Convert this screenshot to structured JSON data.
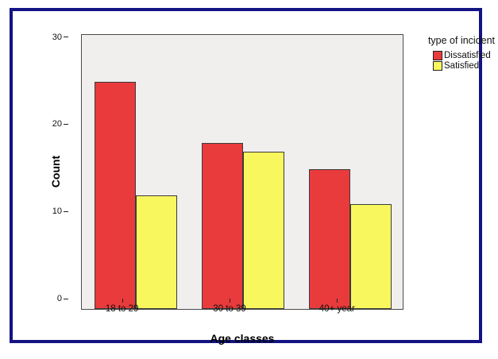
{
  "window": {
    "background": "#ffffff",
    "frame_color": "#131383"
  },
  "chart_data": {
    "type": "bar",
    "title": "",
    "legend_title": "type of incident",
    "xlabel": "Age classes",
    "ylabel": "Count",
    "categories": [
      "18 to 29",
      "30 to 39",
      "40+ year"
    ],
    "series": [
      {
        "name": "Dissatisfied",
        "color": "#e93a3c",
        "values": [
          26,
          19,
          16
        ]
      },
      {
        "name": "Satisfied",
        "color": "#f8f75e",
        "values": [
          13,
          18,
          12
        ]
      }
    ],
    "y_ticks": [
      0,
      10,
      20,
      30
    ],
    "ylim": [
      0,
      31.6
    ],
    "grid": false,
    "legend_position": "top-right-outside",
    "plot_background": "#f0efee",
    "bar_border_color": "#3b3b3b"
  }
}
